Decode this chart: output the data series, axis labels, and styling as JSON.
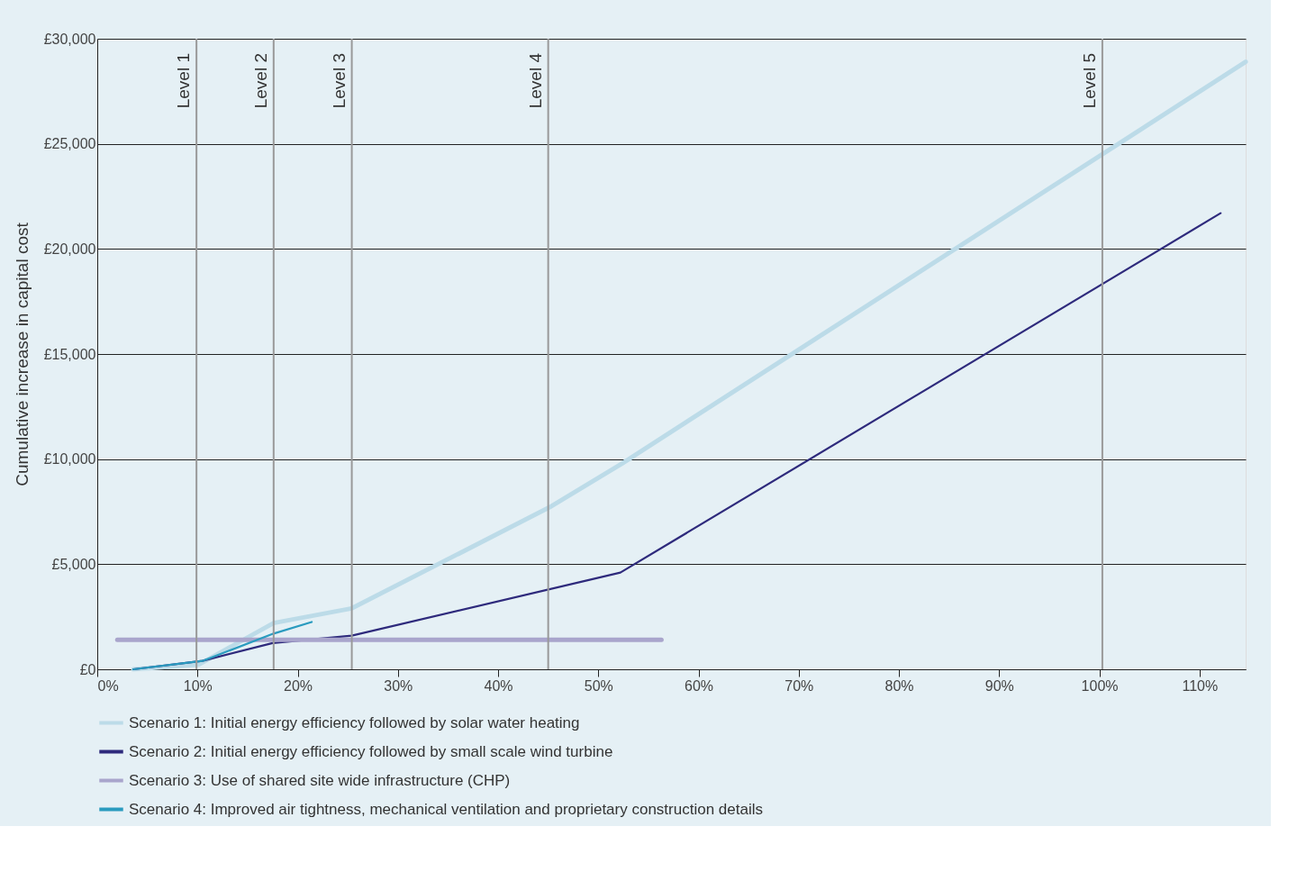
{
  "chart_data": {
    "type": "line",
    "ylabel": "Cumulative increase in capital cost",
    "xlim": [
      0,
      114.6
    ],
    "ylim": [
      0,
      30000
    ],
    "xticks": [
      {
        "value": 0,
        "label": "0%"
      },
      {
        "value": 10,
        "label": "10%"
      },
      {
        "value": 20,
        "label": "20%"
      },
      {
        "value": 30,
        "label": "30%"
      },
      {
        "value": 40,
        "label": "40%"
      },
      {
        "value": 50,
        "label": "50%"
      },
      {
        "value": 60,
        "label": "60%"
      },
      {
        "value": 70,
        "label": "70%"
      },
      {
        "value": 80,
        "label": "80%"
      },
      {
        "value": 90,
        "label": "90%"
      },
      {
        "value": 100,
        "label": "100%"
      },
      {
        "value": 110,
        "label": "110%"
      }
    ],
    "yticks": [
      {
        "value": 0,
        "label": "£0"
      },
      {
        "value": 5000,
        "label": "£5,000"
      },
      {
        "value": 10000,
        "label": "£10,000"
      },
      {
        "value": 15000,
        "label": "£15,000"
      },
      {
        "value": 20000,
        "label": "£20,000"
      },
      {
        "value": 25000,
        "label": "£25,000"
      },
      {
        "value": 30000,
        "label": "£30,000"
      }
    ],
    "grid": "y",
    "legend": "bottom",
    "marker": "none",
    "line_style": "solid",
    "series": [
      {
        "name": "Scenario 1: Initial energy efficiency followed by solar water heating",
        "color": "#bcdbe8",
        "x": [
          3.6,
          10.1,
          17.6,
          25.4,
          45.1,
          52.4,
          114.6
        ],
        "values": [
          0,
          220,
          2200,
          2900,
          7700,
          9800,
          28900
        ]
      },
      {
        "name": "Scenario 2: Initial energy efficiency followed by small scale wind turbine",
        "color": "#2e2a7c",
        "x": [
          3.6,
          10.5,
          17.5,
          25.4,
          52.2,
          112.1
        ],
        "values": [
          0,
          400,
          1250,
          1600,
          4600,
          21700
        ]
      },
      {
        "name": "Scenario 3: Use of shared site wide infrastructure (CHP)",
        "color": "#a9a5cc",
        "x": [
          2,
          56.3
        ],
        "values": [
          1400,
          1400
        ]
      },
      {
        "name": "Scenario 4: Improved air tightness, mechanical ventilation and proprietary construction details",
        "color": "#2a9bbf",
        "x": [
          3.6,
          10.5,
          17.6,
          21.4
        ],
        "values": [
          0,
          400,
          1700,
          2250
        ]
      }
    ],
    "ref_lines": [
      {
        "axis": "x",
        "value": 9.9,
        "label": "Level 1",
        "color": "#999999"
      },
      {
        "axis": "x",
        "value": 17.6,
        "label": "Level 2",
        "color": "#999999"
      },
      {
        "axis": "x",
        "value": 25.4,
        "label": "Level 3",
        "color": "#999999"
      },
      {
        "axis": "x",
        "value": 45,
        "label": "Level 4",
        "color": "#999999"
      },
      {
        "axis": "x",
        "value": 100.3,
        "label": "Level 5",
        "color": "#999999"
      }
    ]
  }
}
